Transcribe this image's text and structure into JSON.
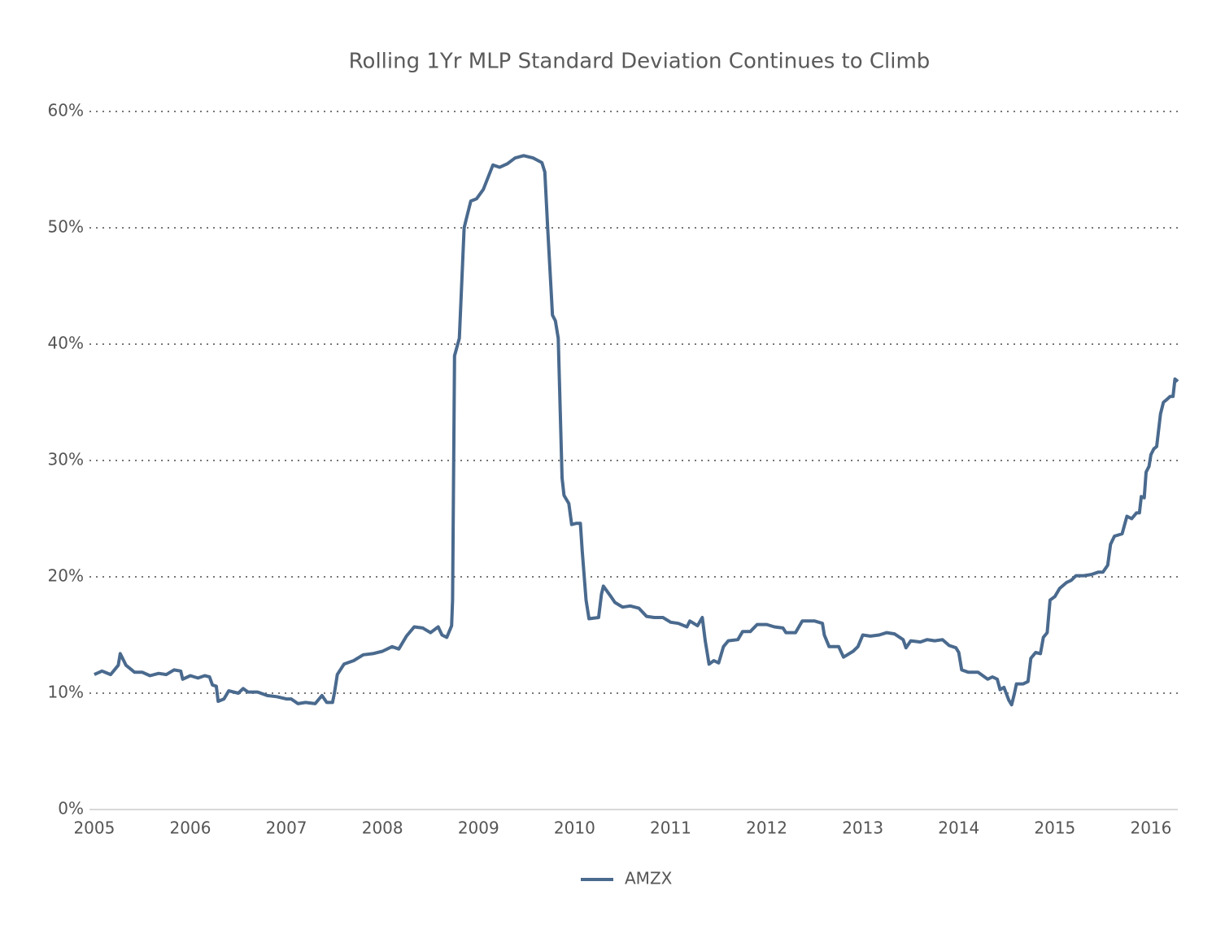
{
  "chart_data": {
    "type": "line",
    "title": "Rolling 1Yr MLP Standard Deviation Continues to Climb",
    "x": [
      2005.0,
      2005.08,
      2005.17,
      2005.25,
      2005.27,
      2005.33,
      2005.42,
      2005.5,
      2005.58,
      2005.67,
      2005.75,
      2005.83,
      2005.9,
      2005.92,
      2006.0,
      2006.08,
      2006.15,
      2006.2,
      2006.23,
      2006.27,
      2006.29,
      2006.35,
      2006.4,
      2006.5,
      2006.55,
      2006.6,
      2006.7,
      2006.8,
      2006.9,
      2007.0,
      2007.05,
      2007.12,
      2007.2,
      2007.3,
      2007.37,
      2007.42,
      2007.48,
      2007.5,
      2007.53,
      2007.6,
      2007.7,
      2007.8,
      2007.9,
      2008.0,
      2008.1,
      2008.17,
      2008.25,
      2008.33,
      2008.42,
      2008.5,
      2008.58,
      2008.62,
      2008.67,
      2008.72,
      2008.73,
      2008.75,
      2008.8,
      2008.85,
      2008.88,
      2008.92,
      2008.98,
      2009.05,
      2009.15,
      2009.22,
      2009.3,
      2009.38,
      2009.47,
      2009.57,
      2009.66,
      2009.69,
      2009.72,
      2009.77,
      2009.8,
      2009.83,
      2009.87,
      2009.89,
      2009.94,
      2009.97,
      2010.02,
      2010.06,
      2010.08,
      2010.12,
      2010.15,
      2010.25,
      2010.28,
      2010.3,
      2010.37,
      2010.42,
      2010.5,
      2010.58,
      2010.67,
      2010.75,
      2010.83,
      2010.92,
      2011.0,
      2011.08,
      2011.17,
      2011.2,
      2011.28,
      2011.33,
      2011.36,
      2011.4,
      2011.45,
      2011.5,
      2011.55,
      2011.6,
      2011.7,
      2011.75,
      2011.83,
      2011.9,
      2012.0,
      2012.08,
      2012.17,
      2012.2,
      2012.3,
      2012.37,
      2012.5,
      2012.58,
      2012.6,
      2012.65,
      2012.75,
      2012.8,
      2012.9,
      2012.95,
      2013.0,
      2013.08,
      2013.17,
      2013.25,
      2013.33,
      2013.42,
      2013.45,
      2013.5,
      2013.6,
      2013.67,
      2013.75,
      2013.83,
      2013.9,
      2013.97,
      2014.0,
      2014.03,
      2014.1,
      2014.2,
      2014.25,
      2014.3,
      2014.35,
      2014.4,
      2014.43,
      2014.47,
      2014.52,
      2014.55,
      2014.58,
      2014.6,
      2014.67,
      2014.72,
      2014.75,
      2014.8,
      2014.85,
      2014.88,
      2014.92,
      2014.95,
      2015.0,
      2015.05,
      2015.12,
      2015.17,
      2015.22,
      2015.3,
      2015.38,
      2015.45,
      2015.5,
      2015.55,
      2015.58,
      2015.62,
      2015.7,
      2015.75,
      2015.8,
      2015.85,
      2015.88,
      2015.9,
      2015.93,
      2015.95,
      2015.98,
      2016.0,
      2016.03,
      2016.06,
      2016.1,
      2016.13,
      2016.16,
      2016.2,
      2016.23,
      2016.25,
      2016.28
    ],
    "series": [
      {
        "name": "AMZX",
        "color": "#4a6a8e",
        "values": [
          11.6,
          11.9,
          11.6,
          12.4,
          13.4,
          12.4,
          11.8,
          11.8,
          11.5,
          11.7,
          11.6,
          12.0,
          11.9,
          11.2,
          11.5,
          11.3,
          11.5,
          11.4,
          10.7,
          10.6,
          9.3,
          9.5,
          10.2,
          10.0,
          10.4,
          10.1,
          10.1,
          9.8,
          9.7,
          9.5,
          9.5,
          9.1,
          9.2,
          9.1,
          9.8,
          9.2,
          9.2,
          10.0,
          11.6,
          12.5,
          12.8,
          13.3,
          13.4,
          13.6,
          14.0,
          13.8,
          14.9,
          15.7,
          15.6,
          15.2,
          15.7,
          15.0,
          14.8,
          15.8,
          18.0,
          39.0,
          40.5,
          50.0,
          51.0,
          52.3,
          52.5,
          53.3,
          55.4,
          55.2,
          55.5,
          56.0,
          56.2,
          56.0,
          55.6,
          54.8,
          50.0,
          42.5,
          42.0,
          40.5,
          28.5,
          27.0,
          26.3,
          24.5,
          24.6,
          24.6,
          22.2,
          18.0,
          16.4,
          16.5,
          18.5,
          19.2,
          18.4,
          17.8,
          17.4,
          17.5,
          17.3,
          16.6,
          16.5,
          16.5,
          16.1,
          16.0,
          15.7,
          16.2,
          15.8,
          16.5,
          14.5,
          12.5,
          12.8,
          12.6,
          14.0,
          14.5,
          14.6,
          15.3,
          15.3,
          15.9,
          15.9,
          15.7,
          15.6,
          15.2,
          15.2,
          16.2,
          16.2,
          16.0,
          15.0,
          14.0,
          14.0,
          13.1,
          13.6,
          14.0,
          15.0,
          14.9,
          15.0,
          15.2,
          15.1,
          14.6,
          13.9,
          14.5,
          14.4,
          14.6,
          14.5,
          14.6,
          14.1,
          13.9,
          13.5,
          12.0,
          11.8,
          11.8,
          11.5,
          11.2,
          11.4,
          11.2,
          10.3,
          10.5,
          9.4,
          9.0,
          10.0,
          10.8,
          10.8,
          11.0,
          13.0,
          13.5,
          13.4,
          14.8,
          15.2,
          18.0,
          18.3,
          19.0,
          19.5,
          19.7,
          20.1,
          20.1,
          20.2,
          20.4,
          20.4,
          21.0,
          22.8,
          23.5,
          23.7,
          25.2,
          25.0,
          25.5,
          25.5,
          26.9,
          26.8,
          29.0,
          29.5,
          30.5,
          31.0,
          31.2,
          34.0,
          35.0,
          35.2,
          35.5,
          35.5,
          37.0,
          36.8
        ]
      }
    ],
    "xlim": [
      2004.95,
      2016.28
    ],
    "xticks": [
      2005,
      2006,
      2007,
      2008,
      2009,
      2010,
      2011,
      2012,
      2013,
      2014,
      2015,
      2016
    ],
    "ylim": [
      0,
      60
    ],
    "yticks": [
      {
        "value": 0,
        "label": "0%"
      },
      {
        "value": 10,
        "label": "10%"
      },
      {
        "value": 20,
        "label": "20%"
      },
      {
        "value": 30,
        "label": "30%"
      },
      {
        "value": 40,
        "label": "40%"
      },
      {
        "value": 50,
        "label": "50%"
      },
      {
        "value": 60,
        "label": "60%"
      }
    ],
    "grid": true,
    "legend": "bottom"
  }
}
